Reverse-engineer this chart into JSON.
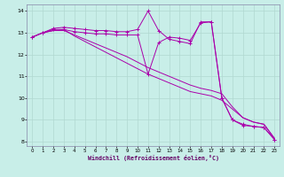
{
  "xlabel": "Windchill (Refroidissement éolien,°C)",
  "line_color": "#aa00aa",
  "bg_color": "#c8eee8",
  "grid_color": "#b0d8d0",
  "spine_color": "#8888aa",
  "xlim": [
    -0.5,
    23.5
  ],
  "ylim": [
    7.8,
    14.3
  ],
  "yticks": [
    8,
    9,
    10,
    11,
    12,
    13,
    14
  ],
  "xticks": [
    0,
    1,
    2,
    3,
    4,
    5,
    6,
    7,
    8,
    9,
    10,
    11,
    12,
    13,
    14,
    15,
    16,
    17,
    18,
    19,
    20,
    21,
    22,
    23
  ],
  "series": [
    {
      "y": [
        12.8,
        13.0,
        13.15,
        13.15,
        13.05,
        13.0,
        12.95,
        12.95,
        12.9,
        12.9,
        12.9,
        11.1,
        12.55,
        12.8,
        12.75,
        12.65,
        13.45,
        13.5,
        10.0,
        9.0,
        8.8,
        8.7,
        8.65,
        8.1
      ],
      "marker": true
    },
    {
      "y": [
        12.8,
        13.0,
        13.2,
        13.25,
        13.2,
        13.15,
        13.1,
        13.1,
        13.05,
        13.05,
        13.15,
        14.0,
        13.1,
        12.7,
        12.6,
        12.5,
        13.5,
        13.5,
        10.0,
        9.0,
        8.75,
        8.7,
        8.65,
        8.1
      ],
      "marker": true
    },
    {
      "y": [
        12.8,
        13.0,
        13.1,
        13.15,
        12.85,
        12.6,
        12.35,
        12.1,
        11.85,
        11.6,
        11.35,
        11.1,
        10.9,
        10.7,
        10.5,
        10.3,
        10.2,
        10.1,
        9.9,
        9.5,
        9.1,
        8.9,
        8.8,
        8.15
      ],
      "marker": false
    },
    {
      "y": [
        12.8,
        13.0,
        13.1,
        13.1,
        12.9,
        12.7,
        12.5,
        12.3,
        12.1,
        11.9,
        11.65,
        11.4,
        11.2,
        11.0,
        10.8,
        10.6,
        10.45,
        10.35,
        10.2,
        9.6,
        9.1,
        8.9,
        8.8,
        8.15
      ],
      "marker": false
    }
  ]
}
